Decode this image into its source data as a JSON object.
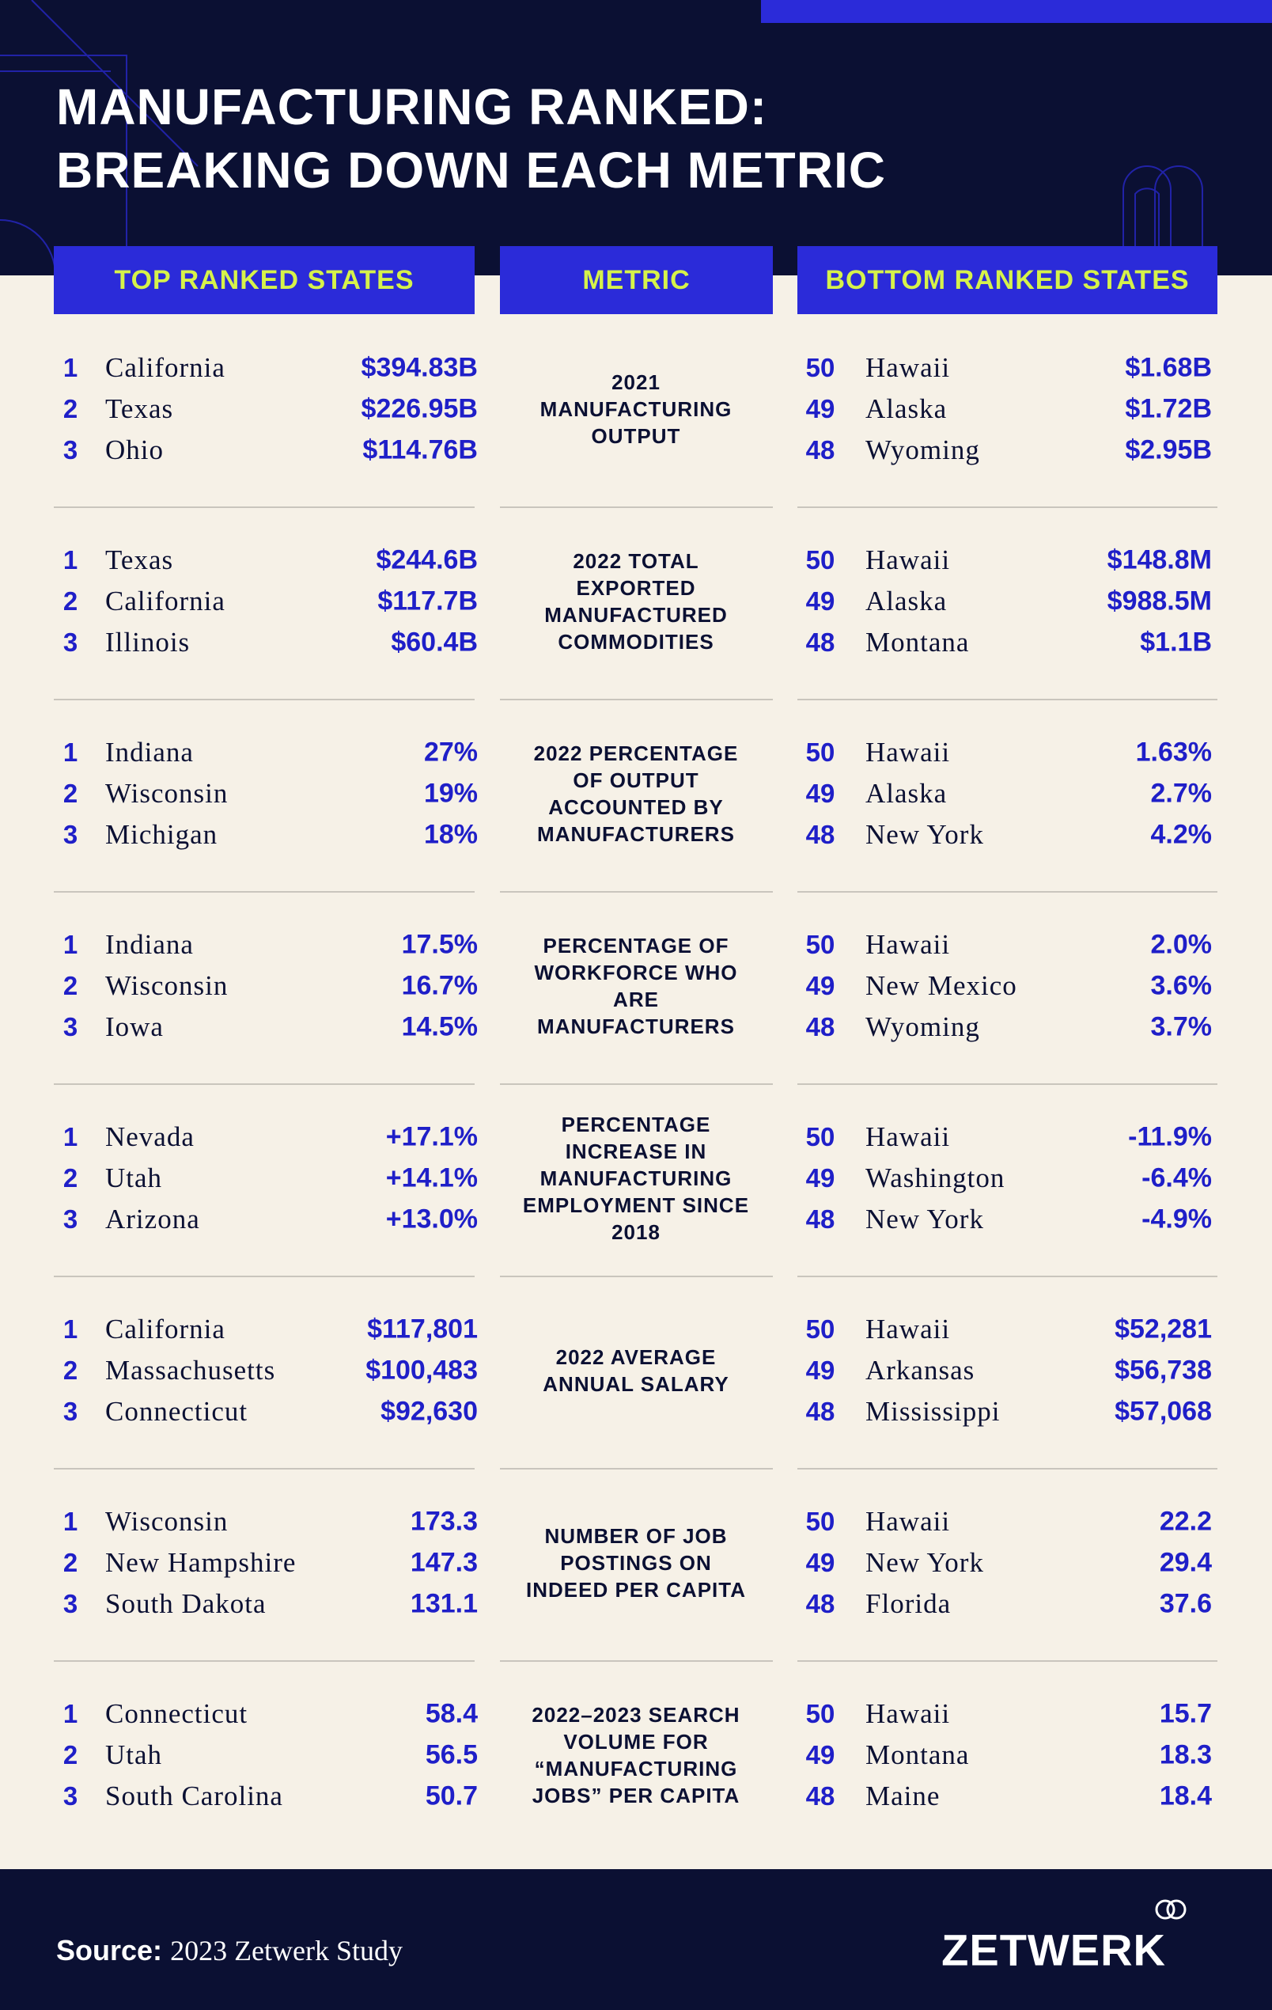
{
  "header": {
    "title": [
      "MANUFACTURING RANKED:",
      "BREAKING DOWN EACH METRIC"
    ]
  },
  "table": {
    "columns": [
      "TOP RANKED STATES",
      "METRIC",
      "BOTTOM RANKED STATES"
    ],
    "rows": [
      {
        "metric": "2021 MANUFACTURING OUTPUT",
        "top": [
          [
            "1",
            "California",
            "$394.83B"
          ],
          [
            "2",
            "Texas",
            "$226.95B"
          ],
          [
            "3",
            "Ohio",
            "$114.76B"
          ]
        ],
        "bottom": [
          [
            "50",
            "Hawaii",
            "$1.68B"
          ],
          [
            "49",
            "Alaska",
            "$1.72B"
          ],
          [
            "48",
            "Wyoming",
            "$2.95B"
          ]
        ]
      },
      {
        "metric": "2022 TOTAL EXPORTED MANUFACTURED COMMODITIES",
        "top": [
          [
            "1",
            "Texas",
            "$244.6B"
          ],
          [
            "2",
            "California",
            "$117.7B"
          ],
          [
            "3",
            "Illinois",
            "$60.4B"
          ]
        ],
        "bottom": [
          [
            "50",
            "Hawaii",
            "$148.8M"
          ],
          [
            "49",
            "Alaska",
            "$988.5M"
          ],
          [
            "48",
            "Montana",
            "$1.1B"
          ]
        ]
      },
      {
        "metric": "2022 PERCENTAGE OF OUTPUT ACCOUNTED BY MANUFACTURERS",
        "top": [
          [
            "1",
            "Indiana",
            "27%"
          ],
          [
            "2",
            "Wisconsin",
            "19%"
          ],
          [
            "3",
            "Michigan",
            "18%"
          ]
        ],
        "bottom": [
          [
            "50",
            "Hawaii",
            "1.63%"
          ],
          [
            "49",
            "Alaska",
            "2.7%"
          ],
          [
            "48",
            "New York",
            "4.2%"
          ]
        ]
      },
      {
        "metric": "PERCENTAGE OF WORKFORCE WHO ARE MANUFACTURERS",
        "top": [
          [
            "1",
            "Indiana",
            "17.5%"
          ],
          [
            "2",
            "Wisconsin",
            "16.7%"
          ],
          [
            "3",
            "Iowa",
            "14.5%"
          ]
        ],
        "bottom": [
          [
            "50",
            "Hawaii",
            "2.0%"
          ],
          [
            "49",
            "New Mexico",
            "3.6%"
          ],
          [
            "48",
            "Wyoming",
            "3.7%"
          ]
        ]
      },
      {
        "metric": "PERCENTAGE INCREASE IN MANUFACTURING EMPLOYMENT SINCE 2018",
        "top": [
          [
            "1",
            "Nevada",
            "+17.1%"
          ],
          [
            "2",
            "Utah",
            "+14.1%"
          ],
          [
            "3",
            "Arizona",
            "+13.0%"
          ]
        ],
        "bottom": [
          [
            "50",
            "Hawaii",
            "-11.9%"
          ],
          [
            "49",
            "Washington",
            "-6.4%"
          ],
          [
            "48",
            "New York",
            "-4.9%"
          ]
        ]
      },
      {
        "metric": "2022 AVERAGE ANNUAL SALARY",
        "top": [
          [
            "1",
            "California",
            "$117,801"
          ],
          [
            "2",
            "Massachusetts",
            "$100,483"
          ],
          [
            "3",
            "Connecticut",
            "$92,630"
          ]
        ],
        "bottom": [
          [
            "50",
            "Hawaii",
            "$52,281"
          ],
          [
            "49",
            "Arkansas",
            "$56,738"
          ],
          [
            "48",
            "Mississippi",
            "$57,068"
          ]
        ]
      },
      {
        "metric": "NUMBER OF JOB POSTINGS ON INDEED PER CAPITA",
        "top": [
          [
            "1",
            "Wisconsin",
            "173.3"
          ],
          [
            "2",
            "New Hampshire",
            "147.3"
          ],
          [
            "3",
            "South Dakota",
            "131.1"
          ]
        ],
        "bottom": [
          [
            "50",
            "Hawaii",
            "22.2"
          ],
          [
            "49",
            "New York",
            "29.4"
          ],
          [
            "48",
            "Florida",
            "37.6"
          ]
        ]
      },
      {
        "metric": "2022–2023 SEARCH VOLUME FOR “MANUFACTURING JOBS” PER CAPITA",
        "top": [
          [
            "1",
            "Connecticut",
            "58.4"
          ],
          [
            "2",
            "Utah",
            "56.5"
          ],
          [
            "3",
            "South Carolina",
            "50.7"
          ]
        ],
        "bottom": [
          [
            "50",
            "Hawaii",
            "15.7"
          ],
          [
            "49",
            "Montana",
            "18.3"
          ],
          [
            "48",
            "Maine",
            "18.4"
          ]
        ]
      }
    ]
  },
  "footer": {
    "source_label": "Source:",
    "source": "2023 Zetwerk Study",
    "logo": "ZETWERK"
  }
}
